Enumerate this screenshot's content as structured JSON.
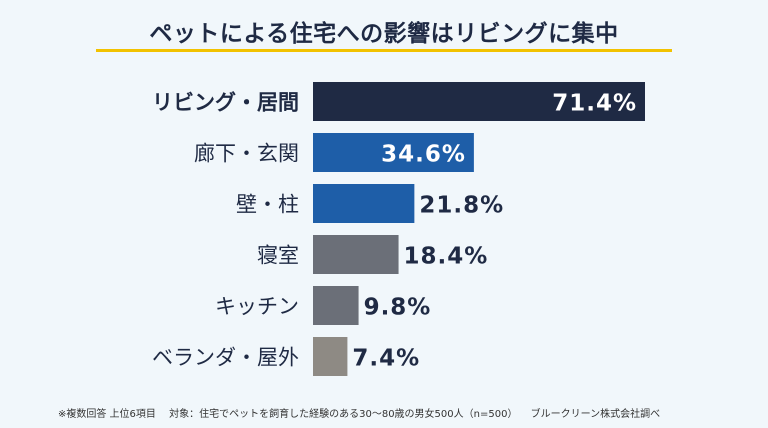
{
  "title": "ペットによる住宅への影響はリビングに集中",
  "colors": {
    "background": "#f1f7fb",
    "title_underline": "#f2c200",
    "text_dark": "#1f2a44"
  },
  "chart_data": {
    "type": "bar",
    "orientation": "horizontal",
    "categories": [
      "リビング・居間",
      "廊下・玄関",
      "壁・柱",
      "寝室",
      "キッチン",
      "ベランダ・屋外"
    ],
    "values": [
      71.4,
      34.6,
      21.8,
      18.4,
      9.8,
      7.4
    ],
    "value_labels": [
      "71.4%",
      "34.6%",
      "21.8%",
      "18.4%",
      "9.8%",
      "7.4%"
    ],
    "bar_colors": [
      "#1f2a44",
      "#1e5ea8",
      "#1e5ea8",
      "#6b6f78",
      "#6b6f78",
      "#8e8a84"
    ],
    "label_inside": [
      true,
      true,
      false,
      false,
      false,
      false
    ],
    "bold_category": [
      true,
      false,
      false,
      false,
      false,
      false
    ],
    "unit": "%",
    "grid": false,
    "legend": "none"
  },
  "footnote": {
    "note": "※複数回答 上位6項目",
    "target": "対象：住宅でペットを飼育した経験のある30〜80歳の男女500人（n=500）",
    "source": "ブルークリーン株式会社調べ"
  }
}
